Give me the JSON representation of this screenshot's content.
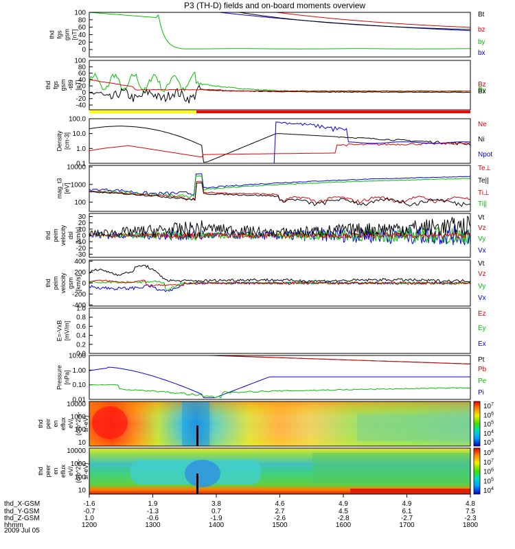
{
  "title": "P3 (TH-D) fields and on-board moments overview",
  "date_label": "2009 Jul 05",
  "chart_data": {
    "type": "line",
    "title": "P3 (TH-D) fields and on-board moments overview",
    "x": {
      "label": "hhmm",
      "ticks": [
        "1200",
        "1300",
        "1400",
        "1500",
        "1600",
        "1700",
        "1800"
      ],
      "ephemeris": [
        {
          "label": "thd_X-GSM",
          "values": [
            "-1.6",
            "1.9",
            "3.8",
            "4.6",
            "4.9",
            "4.9",
            "4.8"
          ]
        },
        {
          "label": "thd_Y-GSM",
          "values": [
            "-0.7",
            "-1.3",
            "0.7",
            "2.7",
            "4.5",
            "6.1",
            "7.5"
          ]
        },
        {
          "label": "thd_Z-GSM",
          "values": [
            "1.0",
            "-0.6",
            "-1.9",
            "-2.6",
            "-2.8",
            "-2.7",
            "-2.3"
          ]
        }
      ]
    },
    "panels": [
      {
        "ylabel": [
          "thd",
          "fgs",
          "gsm",
          "[nT]"
        ],
        "ylim": [
          -20,
          100
        ],
        "log": false,
        "yticks": [
          "100",
          "80",
          "60",
          "40",
          "20",
          "0"
        ],
        "legend": [
          {
            "name": "Bt",
            "color": "#000000"
          },
          {
            "name": "bz",
            "color": "#e00000"
          },
          {
            "name": "by",
            "color": "#00c000"
          },
          {
            "name": "bx",
            "color": "#0000e0"
          }
        ]
      },
      {
        "ylabel": [
          "thd",
          "fgs",
          "gsm",
          "-t89",
          "[nT]"
        ],
        "ylim": [
          -55,
          100
        ],
        "log": false,
        "yticks": [
          "100",
          "80",
          "60",
          "40",
          "20",
          "0",
          "-20",
          "-40"
        ],
        "legend": [
          {
            "name": "Bz",
            "color": "#e00000"
          },
          {
            "name": "By",
            "color": "#00c000"
          },
          {
            "name": "Bx",
            "color": "#000000"
          }
        ]
      },
      {
        "ylabel": [
          "Density",
          "[cm-3]"
        ],
        "ylim": [
          0.1,
          100
        ],
        "log": true,
        "yticks": [
          "100.0",
          "10.0",
          "1.0",
          "0.1"
        ],
        "legend": [
          {
            "name": "Ne",
            "color": "#e00000"
          },
          {
            "name": "Ni",
            "color": "#000000"
          },
          {
            "name": "Npot",
            "color": "#0000e0"
          }
        ]
      },
      {
        "ylabel": [
          "mag_t3",
          "[eV]"
        ],
        "ylim": [
          30,
          12000
        ],
        "log": true,
        "yticks": [
          "10000",
          "1000",
          "100"
        ],
        "legend": [
          {
            "name": "Te⊥",
            "color": "#e00000"
          },
          {
            "name": "Te||",
            "color": "#000000"
          },
          {
            "name": "Ti⊥",
            "color": "#e00000"
          },
          {
            "name": "Ti||",
            "color": "#00c000"
          }
        ]
      },
      {
        "ylabel": [
          "thd",
          "peim",
          "velocity",
          "dsl",
          "[km/s]"
        ],
        "ylim": [
          -35,
          35
        ],
        "log": false,
        "yticks": [
          "30",
          "20",
          "10",
          "0",
          "-10",
          "-20",
          "-30"
        ],
        "legend": [
          {
            "name": "Vt",
            "color": "#000000"
          },
          {
            "name": "Vz",
            "color": "#e00000"
          },
          {
            "name": "Vy",
            "color": "#00c000"
          },
          {
            "name": "Vx",
            "color": "#0000e0"
          }
        ]
      },
      {
        "ylabel": [
          "thd",
          "peim",
          "velocity",
          "gsm",
          "[km/s]"
        ],
        "ylim": [
          -420,
          420
        ],
        "log": false,
        "yticks": [
          "400",
          "200",
          "0",
          "-200",
          "-400"
        ],
        "legend": [
          {
            "name": "Vt",
            "color": "#000000"
          },
          {
            "name": "Vz",
            "color": "#e00000"
          },
          {
            "name": "Vy",
            "color": "#00c000"
          },
          {
            "name": "Vx",
            "color": "#0000e0"
          }
        ]
      },
      {
        "ylabel": [
          "E=-VxB",
          "[mV/m]"
        ],
        "ylim": [
          0,
          1
        ],
        "log": false,
        "yticks": [
          "1.0",
          "0.8",
          "0.6",
          "0.4",
          "0.2",
          "0.0"
        ],
        "legend": [
          {
            "name": "Ez",
            "color": "#e00000"
          },
          {
            "name": "Ey",
            "color": "#00c000"
          },
          {
            "name": "Ex",
            "color": "#0000e0"
          }
        ]
      },
      {
        "ylabel": [
          "Pressure",
          "[nPa]"
        ],
        "ylim": [
          0.01,
          10
        ],
        "log": true,
        "yticks": [
          "10.00",
          "1.00",
          "0.10",
          "0.01"
        ],
        "legend": [
          {
            "name": "Pt",
            "color": "#000000"
          },
          {
            "name": "Pb",
            "color": "#e00000"
          },
          {
            "name": "Pe",
            "color": "#00c000"
          },
          {
            "name": "Pi",
            "color": "#0000e0"
          }
        ]
      },
      {
        "ylabel": [
          "thd",
          "peir",
          "en",
          "eflux",
          "eV/",
          "(cm^2-s-",
          "sr-eV)"
        ],
        "ylim": [
          5,
          15000
        ],
        "log": true,
        "yticks": [
          "10000",
          "1000",
          "100",
          "10"
        ],
        "colorbar": [
          "10^7",
          "10^6",
          "10^5",
          "10^4",
          "10^3"
        ]
      },
      {
        "ylabel": [
          "thd",
          "peer",
          "en",
          "eflux",
          "eV/",
          "(cm^2-s-",
          "sr-eV)"
        ],
        "ylim": [
          5,
          15000
        ],
        "log": true,
        "yticks": [
          "10000",
          "1000",
          "100",
          "10"
        ],
        "colorbar": [
          "10^8",
          "10^7",
          "10^6",
          "10^5",
          "10^4"
        ]
      }
    ]
  }
}
